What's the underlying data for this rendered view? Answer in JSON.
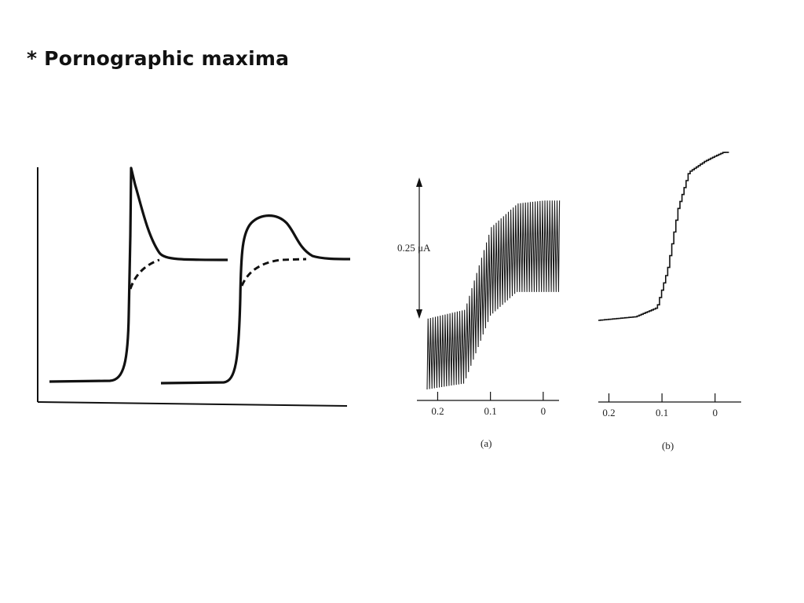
{
  "slide": {
    "title": "* Pornographic maxima"
  },
  "colors": {
    "ink": "#111111",
    "background": "#ffffff"
  },
  "chart_data": [
    {
      "type": "line",
      "title": "",
      "xlabel": "",
      "ylabel": "",
      "grid": false,
      "legend": "none",
      "series": [
        {
          "style": "solid",
          "shape": "sharp-maximum"
        },
        {
          "style": "dashed",
          "shape": "normal-wave"
        },
        {
          "style": "solid",
          "shape": "rounded-maximum"
        },
        {
          "style": "dashed",
          "shape": "normal-wave"
        }
      ]
    },
    {
      "type": "line",
      "panel_label": "(a)",
      "scale_bar_label": "0.25 μA",
      "x_ticks": [
        "0.2",
        "0.1",
        "0"
      ],
      "x_ticks_values": [
        0.2,
        0.1,
        0
      ],
      "xlim": [
        0.22,
        -0.03
      ],
      "oscillating": true,
      "series": [
        {
          "style": "envelope",
          "x": [
            0.22,
            0.15,
            0.1,
            0.05,
            0.0,
            -0.03
          ],
          "y_low": [
            0.0,
            0.02,
            0.25,
            0.33,
            0.33,
            0.33
          ],
          "y_high": [
            0.24,
            0.27,
            0.55,
            0.63,
            0.64,
            0.64
          ]
        }
      ]
    },
    {
      "type": "line",
      "panel_label": "(b)",
      "x_ticks": [
        "0.2",
        "0.1",
        "0"
      ],
      "x_ticks_values": [
        0.2,
        0.1,
        0
      ],
      "xlim": [
        0.22,
        -0.03
      ],
      "series": [
        {
          "style": "staircase",
          "x": [
            0.22,
            0.15,
            0.11,
            0.09,
            0.07,
            0.05,
            0.02,
            0.0,
            -0.015
          ],
          "y": [
            0.0,
            0.02,
            0.07,
            0.28,
            0.62,
            0.82,
            0.88,
            0.91,
            0.93
          ]
        }
      ]
    }
  ]
}
